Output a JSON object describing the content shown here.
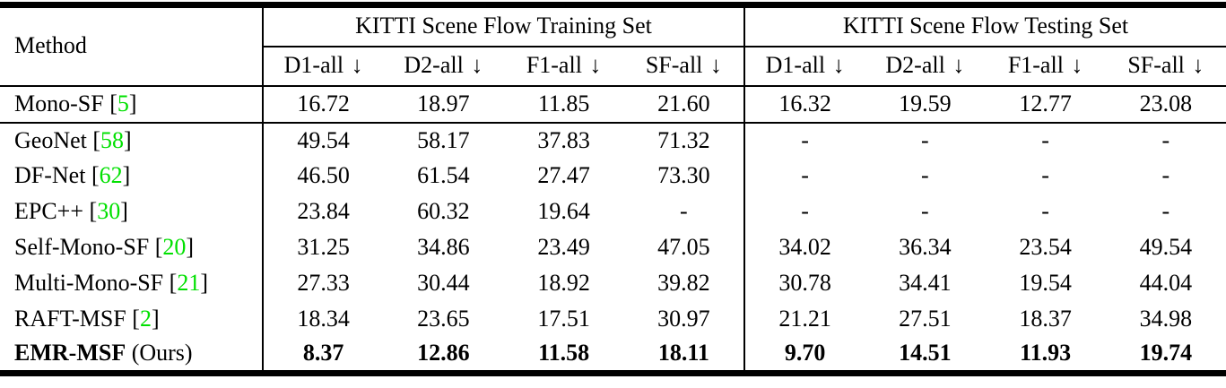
{
  "colors": {
    "citation": "#00e000",
    "text": "#000000",
    "rule": "#000000",
    "background": "#ffffff"
  },
  "table": {
    "method_header": "Method",
    "arrow": "↓",
    "col_groups": [
      {
        "label": "KITTI Scene Flow Training Set",
        "metrics": [
          "D1-all",
          "D2-all",
          "F1-all",
          "SF-all"
        ]
      },
      {
        "label": "KITTI Scene Flow Testing Set",
        "metrics": [
          "D1-all",
          "D2-all",
          "F1-all",
          "SF-all"
        ]
      }
    ],
    "rows": [
      {
        "method": "Mono-SF",
        "cite": "5",
        "suffix": "",
        "bold": false,
        "separator_after": true,
        "training": [
          "16.72",
          "18.97",
          "11.85",
          "21.60"
        ],
        "testing": [
          "16.32",
          "19.59",
          "12.77",
          "23.08"
        ]
      },
      {
        "method": "GeoNet",
        "cite": "58",
        "suffix": "",
        "bold": false,
        "separator_after": false,
        "training": [
          "49.54",
          "58.17",
          "37.83",
          "71.32"
        ],
        "testing": [
          "-",
          "-",
          "-",
          "-"
        ]
      },
      {
        "method": "DF-Net",
        "cite": "62",
        "suffix": "",
        "bold": false,
        "separator_after": false,
        "training": [
          "46.50",
          "61.54",
          "27.47",
          "73.30"
        ],
        "testing": [
          "-",
          "-",
          "-",
          "-"
        ]
      },
      {
        "method": "EPC++",
        "cite": "30",
        "suffix": "",
        "bold": false,
        "separator_after": false,
        "training": [
          "23.84",
          "60.32",
          "19.64",
          "-"
        ],
        "testing": [
          "-",
          "-",
          "-",
          "-"
        ]
      },
      {
        "method": "Self-Mono-SF",
        "cite": "20",
        "suffix": "",
        "bold": false,
        "separator_after": false,
        "training": [
          "31.25",
          "34.86",
          "23.49",
          "47.05"
        ],
        "testing": [
          "34.02",
          "36.34",
          "23.54",
          "49.54"
        ]
      },
      {
        "method": "Multi-Mono-SF",
        "cite": "21",
        "suffix": "",
        "bold": false,
        "separator_after": false,
        "training": [
          "27.33",
          "30.44",
          "18.92",
          "39.82"
        ],
        "testing": [
          "30.78",
          "34.41",
          "19.54",
          "44.04"
        ]
      },
      {
        "method": "RAFT-MSF",
        "cite": "2",
        "suffix": "",
        "bold": false,
        "separator_after": false,
        "training": [
          "18.34",
          "23.65",
          "17.51",
          "30.97"
        ],
        "testing": [
          "21.21",
          "27.51",
          "18.37",
          "34.98"
        ]
      },
      {
        "method": "EMR-MSF",
        "cite": null,
        "suffix": " (Ours)",
        "bold": true,
        "separator_after": false,
        "training": [
          "8.37",
          "12.86",
          "11.58",
          "18.11"
        ],
        "testing": [
          "9.70",
          "14.51",
          "11.93",
          "19.74"
        ]
      }
    ]
  }
}
